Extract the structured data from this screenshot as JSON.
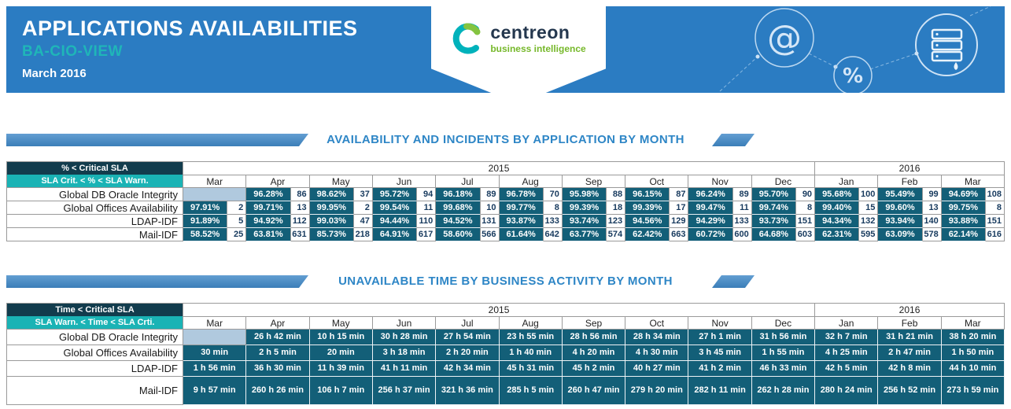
{
  "colors": {
    "banner_blue": "#2b7cc2",
    "accent_teal": "#1fb6b8",
    "title_blue": "#2e86c6",
    "bar_blue": "#4089c8",
    "legend_dark": "#123c4d",
    "legend_teal": "#1ab3b5",
    "cell_dark": "#135f78",
    "empty_cell": "#b0c9de"
  },
  "banner": {
    "title": "APPLICATIONS AVAILABILITIES",
    "subtitle": "BA-CIO-VIEW",
    "period": "March 2016",
    "logo": {
      "name": "centreon",
      "tagline": "business intelligence"
    },
    "decor_icons": [
      "at-icon",
      "percent-icon",
      "server-icon"
    ]
  },
  "sections": [
    {
      "kind": "availability",
      "title": "AVAILABILITY AND INCIDENTS BY APPLICATION BY MONTH",
      "legend": {
        "critical": "% < Critical SLA",
        "warning": "SLA Crit. < % < SLA Warn."
      },
      "years": [
        {
          "label": "2015",
          "span": 10
        },
        {
          "label": "2016",
          "span": 3
        }
      ],
      "months": [
        "Mar",
        "Apr",
        "May",
        "Jun",
        "Jul",
        "Aug",
        "Sep",
        "Oct",
        "Nov",
        "Dec",
        "Jan",
        "Feb",
        "Mar"
      ],
      "rows": [
        {
          "label": "Global DB Oracle Integrity",
          "cells": [
            null,
            {
              "pct": "96.28%",
              "inc": "86"
            },
            {
              "pct": "98.62%",
              "inc": "37"
            },
            {
              "pct": "95.72%",
              "inc": "94"
            },
            {
              "pct": "96.18%",
              "inc": "89"
            },
            {
              "pct": "96.78%",
              "inc": "70"
            },
            {
              "pct": "95.98%",
              "inc": "88"
            },
            {
              "pct": "96.15%",
              "inc": "87"
            },
            {
              "pct": "96.24%",
              "inc": "89"
            },
            {
              "pct": "95.70%",
              "inc": "90"
            },
            {
              "pct": "95.68%",
              "inc": "100"
            },
            {
              "pct": "95.49%",
              "inc": "99"
            },
            {
              "pct": "94.69%",
              "inc": "108"
            }
          ]
        },
        {
          "label": "Global Offices Availability",
          "cells": [
            {
              "pct": "97.91%",
              "inc": "2"
            },
            {
              "pct": "99.71%",
              "inc": "13"
            },
            {
              "pct": "99.95%",
              "inc": "2"
            },
            {
              "pct": "99.54%",
              "inc": "11"
            },
            {
              "pct": "99.68%",
              "inc": "10"
            },
            {
              "pct": "99.77%",
              "inc": "8"
            },
            {
              "pct": "99.39%",
              "inc": "18"
            },
            {
              "pct": "99.39%",
              "inc": "17"
            },
            {
              "pct": "99.47%",
              "inc": "11"
            },
            {
              "pct": "99.74%",
              "inc": "8"
            },
            {
              "pct": "99.40%",
              "inc": "15"
            },
            {
              "pct": "99.60%",
              "inc": "13"
            },
            {
              "pct": "99.75%",
              "inc": "8"
            }
          ]
        },
        {
          "label": "LDAP-IDF",
          "cells": [
            {
              "pct": "91.89%",
              "inc": "5"
            },
            {
              "pct": "94.92%",
              "inc": "112"
            },
            {
              "pct": "99.03%",
              "inc": "47"
            },
            {
              "pct": "94.44%",
              "inc": "110"
            },
            {
              "pct": "94.52%",
              "inc": "131"
            },
            {
              "pct": "93.87%",
              "inc": "133"
            },
            {
              "pct": "93.74%",
              "inc": "123"
            },
            {
              "pct": "94.56%",
              "inc": "129"
            },
            {
              "pct": "94.29%",
              "inc": "133"
            },
            {
              "pct": "93.73%",
              "inc": "151"
            },
            {
              "pct": "94.34%",
              "inc": "132"
            },
            {
              "pct": "93.94%",
              "inc": "140"
            },
            {
              "pct": "93.88%",
              "inc": "151"
            }
          ]
        },
        {
          "label": "Mail-IDF",
          "cells": [
            {
              "pct": "58.52%",
              "inc": "25"
            },
            {
              "pct": "63.81%",
              "inc": "631"
            },
            {
              "pct": "85.73%",
              "inc": "218"
            },
            {
              "pct": "64.91%",
              "inc": "617"
            },
            {
              "pct": "58.60%",
              "inc": "566"
            },
            {
              "pct": "61.64%",
              "inc": "642"
            },
            {
              "pct": "63.77%",
              "inc": "574"
            },
            {
              "pct": "62.42%",
              "inc": "663"
            },
            {
              "pct": "60.72%",
              "inc": "600"
            },
            {
              "pct": "64.68%",
              "inc": "603"
            },
            {
              "pct": "62.31%",
              "inc": "595"
            },
            {
              "pct": "63.09%",
              "inc": "578"
            },
            {
              "pct": "62.14%",
              "inc": "616"
            }
          ]
        }
      ]
    },
    {
      "kind": "time",
      "title": "UNAVAILABLE TIME BY BUSINESS ACTIVITY BY MONTH",
      "legend": {
        "critical": "Time < Critical SLA",
        "warning": "SLA Warn. < Time < SLA Crti."
      },
      "years": [
        {
          "label": "2015",
          "span": 10
        },
        {
          "label": "2016",
          "span": 3
        }
      ],
      "months": [
        "Mar",
        "Apr",
        "May",
        "Jun",
        "Jul",
        "Aug",
        "Sep",
        "Oct",
        "Nov",
        "Dec",
        "Jan",
        "Feb",
        "Mar"
      ],
      "rows": [
        {
          "label": "Global DB Oracle Integrity",
          "cells": [
            null,
            "26 h 42 min",
            "10 h 15 min",
            "30 h 28 min",
            "27 h 54 min",
            "23 h 55 min",
            "28 h 56 min",
            "28 h 34 min",
            "27 h 1 min",
            "31 h 56 min",
            "32 h 7 min",
            "31 h 21 min",
            "38 h 20 min"
          ]
        },
        {
          "label": "Global Offices Availability",
          "cells": [
            "30 min",
            "2 h 5 min",
            "20 min",
            "3 h 18 min",
            "2 h 20 min",
            "1 h 40 min",
            "4 h 20 min",
            "4 h 30 min",
            "3 h 45 min",
            "1 h 55 min",
            "4 h 25 min",
            "2 h 47 min",
            "1 h 50 min"
          ]
        },
        {
          "label": "LDAP-IDF",
          "cells": [
            "1 h 56 min",
            "36 h 30 min",
            "11 h 39 min",
            "41 h 11 min",
            "42 h 34 min",
            "45 h 31 min",
            "45 h 2 min",
            "40 h 27 min",
            "41 h 2 min",
            "46 h 33 min",
            "42 h 5 min",
            "42 h 8 min",
            "44 h 10 min"
          ]
        },
        {
          "label": "Mail-IDF",
          "cells": [
            "9 h 57 min",
            "260 h 26 min",
            "106 h 7 min",
            "256 h 37 min",
            "321 h 36 min",
            "285 h 5 min",
            "260 h 47 min",
            "279 h 20 min",
            "282 h 11 min",
            "262 h 28 min",
            "280 h 24 min",
            "256 h 52 min",
            "273 h 59 min"
          ]
        }
      ]
    }
  ]
}
